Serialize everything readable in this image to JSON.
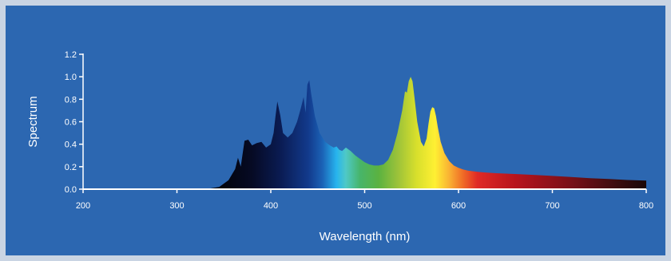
{
  "chart_data": {
    "type": "area",
    "title": "",
    "xlabel": "Wavelength (nm)",
    "ylabel": "Spectrum",
    "xlim": [
      200,
      800
    ],
    "ylim": [
      0,
      1.2
    ],
    "x_ticks": [
      200,
      300,
      400,
      500,
      600,
      700,
      800
    ],
    "y_ticks": [
      0.0,
      0.2,
      0.4,
      0.6,
      0.8,
      1.0,
      1.2
    ],
    "grid": false,
    "legend": "none",
    "fill": "visible-spectrum gradient",
    "colors": {
      "background": "#2c67b1",
      "frame": "#c9d4e3",
      "axis": "#ffffff"
    },
    "series": [
      {
        "x": [
          330,
          345,
          355,
          362,
          365,
          368,
          372,
          376,
          380,
          385,
          390,
          395,
          400,
          403,
          405,
          407,
          410,
          413,
          418,
          423,
          428,
          432,
          435,
          437,
          439,
          441,
          443,
          447,
          452,
          458,
          463,
          467,
          470,
          473,
          476,
          480,
          485,
          490,
          495,
          500,
          505,
          510,
          515,
          520,
          525,
          530,
          535,
          540,
          543,
          545,
          547,
          549,
          551,
          553,
          556,
          560,
          563,
          566,
          568,
          570,
          572,
          574,
          576,
          578,
          581,
          585,
          590,
          595,
          600,
          605,
          610,
          620,
          630,
          640,
          660,
          680,
          700,
          720,
          740,
          760,
          780,
          800
        ],
        "y": [
          0.0,
          0.02,
          0.08,
          0.18,
          0.28,
          0.2,
          0.43,
          0.44,
          0.39,
          0.41,
          0.42,
          0.37,
          0.4,
          0.5,
          0.65,
          0.78,
          0.66,
          0.5,
          0.46,
          0.5,
          0.6,
          0.72,
          0.82,
          0.68,
          0.93,
          0.97,
          0.85,
          0.65,
          0.5,
          0.42,
          0.39,
          0.37,
          0.38,
          0.35,
          0.34,
          0.37,
          0.34,
          0.3,
          0.27,
          0.24,
          0.22,
          0.21,
          0.21,
          0.22,
          0.26,
          0.35,
          0.5,
          0.7,
          0.87,
          0.86,
          0.96,
          1.0,
          0.96,
          0.82,
          0.6,
          0.42,
          0.38,
          0.45,
          0.58,
          0.69,
          0.73,
          0.72,
          0.65,
          0.55,
          0.42,
          0.32,
          0.25,
          0.21,
          0.19,
          0.175,
          0.165,
          0.155,
          0.148,
          0.142,
          0.135,
          0.127,
          0.118,
          0.108,
          0.098,
          0.09,
          0.082,
          0.077
        ]
      }
    ]
  }
}
